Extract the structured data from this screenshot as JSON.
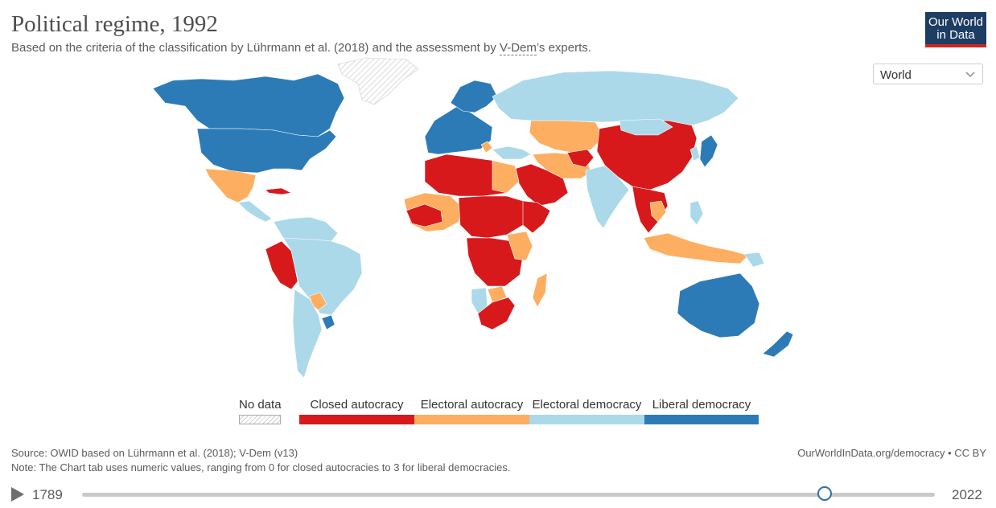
{
  "header": {
    "title": "Political regime, 1992",
    "subtitle_pre": "Based on the criteria of the classification by Lührmann et al. (2018) and the assessment by ",
    "subtitle_link": "V-Dem",
    "subtitle_post": "’s experts.",
    "logo_line1": "Our World",
    "logo_line2": "in Data"
  },
  "region_select": {
    "value": "World",
    "icon": "chevron-down-icon"
  },
  "legend": {
    "no_data": "No data",
    "items": [
      {
        "label": "Closed autocracy",
        "color": "#d7191c"
      },
      {
        "label": "Electoral autocracy",
        "color": "#fdae61"
      },
      {
        "label": "Electoral democracy",
        "color": "#abd9e9"
      },
      {
        "label": "Liberal democracy",
        "color": "#2c7bb6"
      }
    ]
  },
  "footer": {
    "source": "Source: OWID based on Lührmann et al. (2018); V-Dem (v13)",
    "note": "Note: The Chart tab uses numeric values, ranging from 0 for closed autocracies to 3 for liberal democracies.",
    "credit": "OurWorldInData.org/democracy • CC BY"
  },
  "timeline": {
    "start_year": "1789",
    "end_year": "2022",
    "selected_year": 1992,
    "play_icon": "play-icon"
  }
}
